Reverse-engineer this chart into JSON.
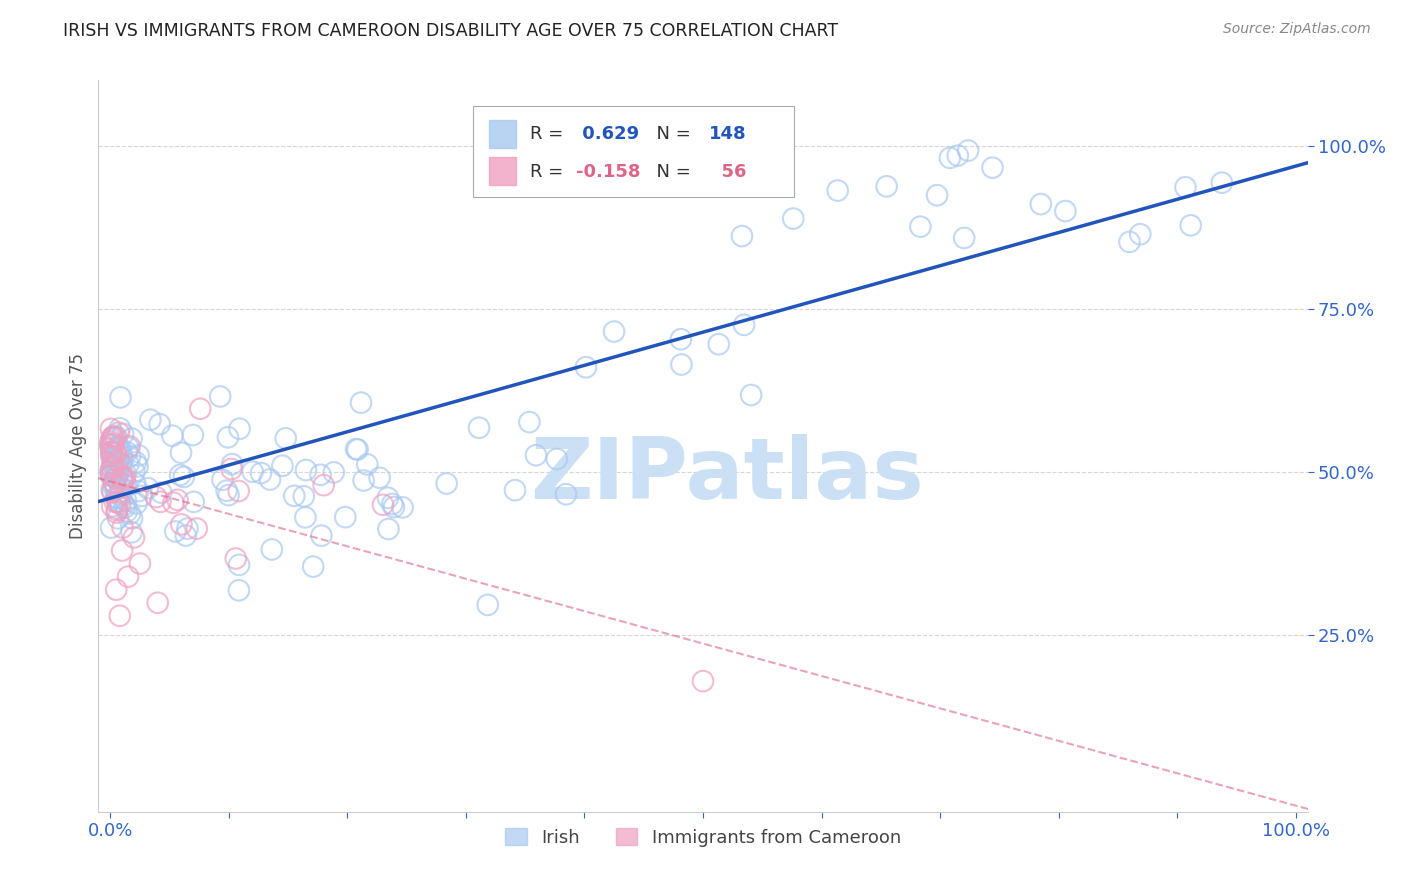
{
  "title": "IRISH VS IMMIGRANTS FROM CAMEROON DISABILITY AGE OVER 75 CORRELATION CHART",
  "source": "Source: ZipAtlas.com",
  "ylabel": "Disability Age Over 75",
  "irish_R": 0.629,
  "irish_N": 148,
  "cameroon_R": -0.158,
  "cameroon_N": 56,
  "irish_color": "#a8c8f0",
  "cameroon_color": "#f0a0c0",
  "irish_line_color": "#2255bb",
  "cameroon_line_color": "#dd6688",
  "watermark_text": "ZIPatlas",
  "watermark_color": "#cce0f5",
  "background_color": "#ffffff",
  "grid_color": "#cccccc",
  "title_color": "#222222",
  "tick_color": "#3366cc",
  "ylabel_color": "#555555",
  "source_color": "#888888"
}
